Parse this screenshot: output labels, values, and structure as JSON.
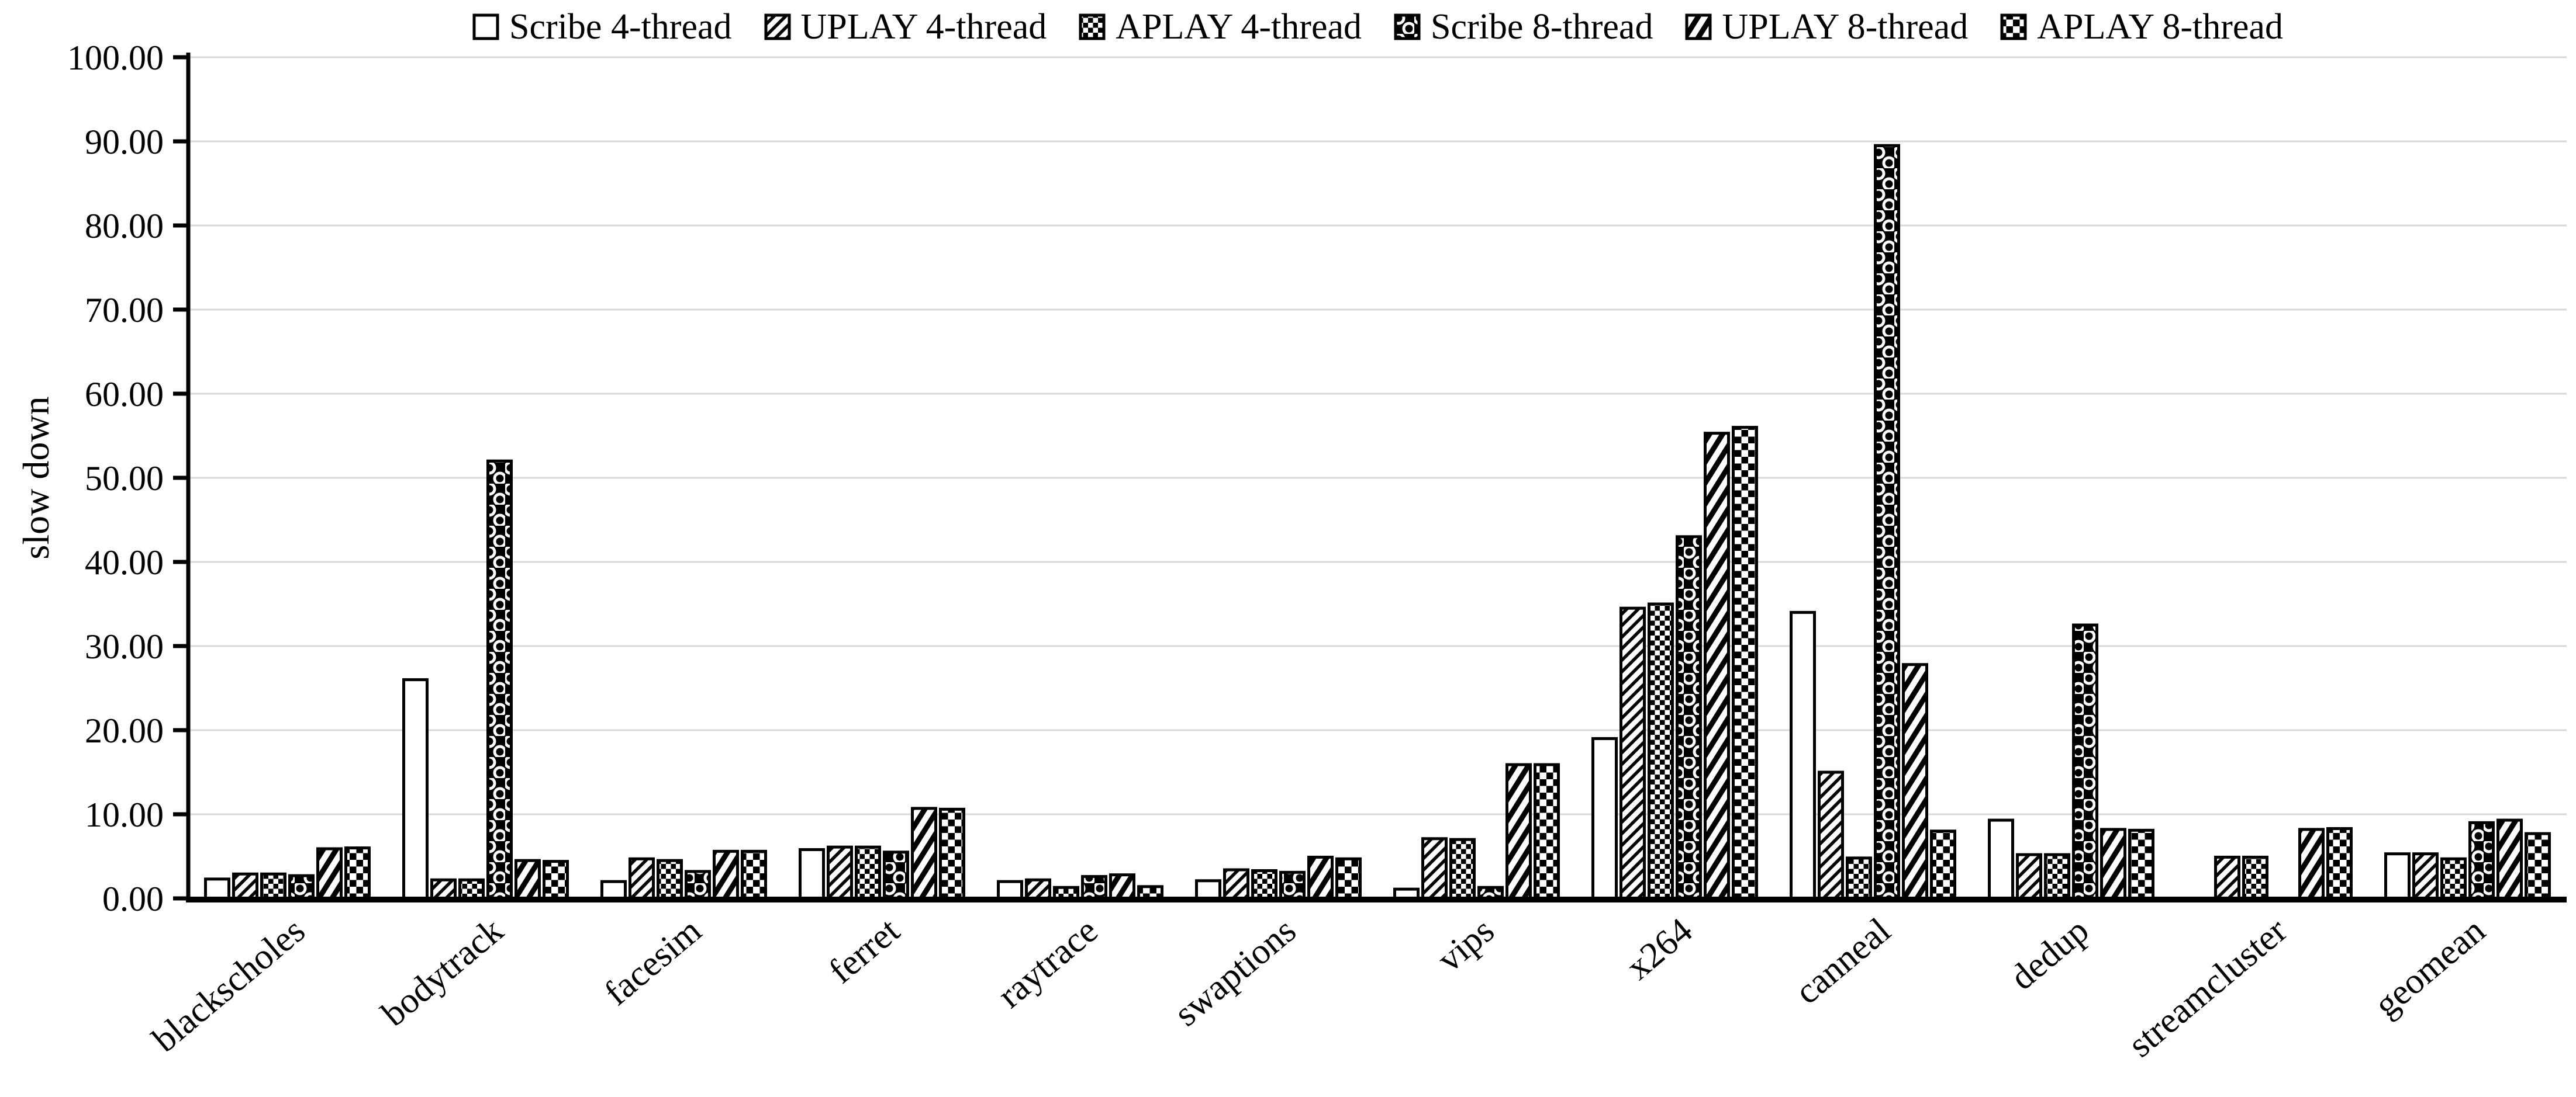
{
  "chart_data": {
    "type": "bar",
    "title": "",
    "ylabel": "slow down",
    "xlabel": "",
    "ylim": [
      0,
      100
    ],
    "ytick_step": 10,
    "ytick_labels": [
      "0.00",
      "10.00",
      "20.00",
      "30.00",
      "40.00",
      "50.00",
      "60.00",
      "70.00",
      "80.00",
      "90.00",
      "100.00"
    ],
    "grid": "horizontal",
    "legend_position": "top",
    "categories": [
      "blackscholes",
      "bodytrack",
      "facesim",
      "ferret",
      "raytrace",
      "swaptions",
      "vips",
      "x264",
      "canneal",
      "dedup",
      "streamcluster",
      "geomean"
    ],
    "series": [
      {
        "name": "Scribe 4-thread",
        "pattern": "plain-white",
        "values": [
          2.3,
          26.0,
          2.0,
          5.8,
          2.0,
          2.1,
          1.1,
          19.0,
          34.0,
          9.3,
          0,
          5.3
        ]
      },
      {
        "name": "UPLAY 4-thread",
        "pattern": "diagonal-hatch-thin",
        "values": [
          2.9,
          2.2,
          4.7,
          6.1,
          2.2,
          3.4,
          7.1,
          34.5,
          15.0,
          5.2,
          4.9,
          5.3
        ]
      },
      {
        "name": "APLAY 4-thread",
        "pattern": "fine-checker",
        "values": [
          2.9,
          2.2,
          4.5,
          6.1,
          1.3,
          3.3,
          7.0,
          35.0,
          4.8,
          5.2,
          4.9,
          4.7
        ]
      },
      {
        "name": "Scribe 8-thread",
        "pattern": "chain-rings",
        "values": [
          2.7,
          52.0,
          3.2,
          5.5,
          2.6,
          3.1,
          1.3,
          43.0,
          89.5,
          32.5,
          0,
          9.0
        ]
      },
      {
        "name": "UPLAY 8-thread",
        "pattern": "diagonal-hatch-thick",
        "values": [
          5.9,
          4.5,
          5.6,
          10.7,
          2.8,
          4.9,
          15.9,
          55.3,
          27.8,
          8.2,
          8.2,
          9.3
        ]
      },
      {
        "name": "APLAY 8-thread",
        "pattern": "checkerboard",
        "values": [
          6.0,
          4.4,
          5.6,
          10.6,
          1.4,
          4.7,
          15.9,
          56.0,
          8.0,
          8.1,
          8.3,
          7.7
        ]
      }
    ],
    "colors": {
      "bar_stroke": "#000000",
      "gridline": "#d9d9d9",
      "background": "#ffffff",
      "text": "#000000"
    }
  }
}
